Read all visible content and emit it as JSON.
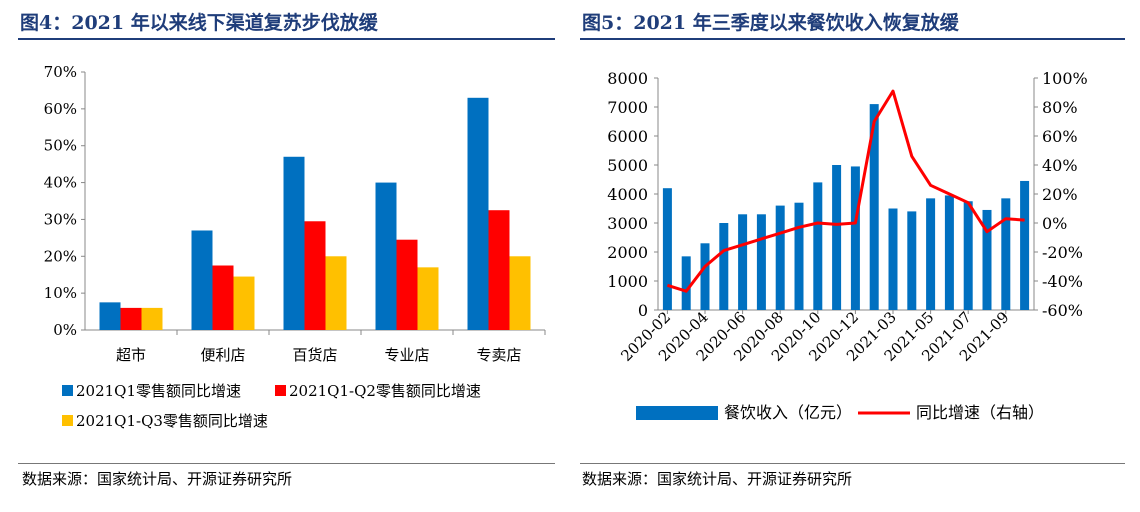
{
  "left": {
    "title": "图4：2021 年以来线下渠道复苏步伐放缓",
    "source": "数据来源：国家统计局、开源证券研究所",
    "chart_data": {
      "type": "bar",
      "categories": [
        "超市",
        "便利店",
        "百货店",
        "专业店",
        "专卖店"
      ],
      "series": [
        {
          "name": "2021Q1零售额同比增速",
          "color": "#0070c0",
          "values": [
            7.5,
            27,
            47,
            40,
            63
          ]
        },
        {
          "name": "2021Q1-Q2零售额同比增速",
          "color": "#ff0000",
          "values": [
            6,
            17.5,
            29.5,
            24.5,
            32.5
          ]
        },
        {
          "name": "2021Q1-Q3零售额同比增速",
          "color": "#ffc000",
          "values": [
            6,
            14.5,
            20,
            17,
            20
          ]
        }
      ],
      "ylim": [
        0,
        70
      ],
      "yticks": [
        "0%",
        "10%",
        "20%",
        "30%",
        "40%",
        "50%",
        "60%",
        "70%"
      ],
      "grid": false,
      "legend": "bottom"
    }
  },
  "right": {
    "title": "图5：2021 年三季度以来餐饮收入恢复放缓",
    "source": "数据来源：国家统计局、开源证券研究所",
    "chart_data": {
      "type": "bar+line",
      "x": [
        "2020-02",
        "2020-03",
        "2020-04",
        "2020-05",
        "2020-06",
        "2020-07",
        "2020-08",
        "2020-09",
        "2020-10",
        "2020-11",
        "2020-12",
        "2021-02",
        "2021-03",
        "2021-04",
        "2021-05",
        "2021-06",
        "2021-07",
        "2021-08",
        "2021-09",
        "2021-10"
      ],
      "xtick_labels": [
        "2020-02",
        "2020-04",
        "2020-06",
        "2020-08",
        "2020-10",
        "2020-12",
        "2021-03",
        "2021-05",
        "2021-07",
        "2021-09"
      ],
      "series": [
        {
          "name": "餐饮收入（亿元）",
          "type": "bar",
          "axis": "left",
          "color": "#0070c0",
          "values": [
            4200,
            1850,
            2300,
            3000,
            3300,
            3300,
            3600,
            3700,
            4400,
            5000,
            4950,
            7100,
            3500,
            3400,
            3850,
            3950,
            3750,
            3450,
            3850,
            4450
          ]
        },
        {
          "name": "同比增速（右轴）",
          "type": "line",
          "axis": "right",
          "color": "#ff0000",
          "values": [
            -43,
            -47,
            -30,
            -19,
            -15,
            -11,
            -7,
            -3,
            0,
            -1,
            0,
            70,
            91,
            46,
            26,
            20,
            14,
            -6,
            3,
            2
          ]
        }
      ],
      "ylim_left": [
        0,
        8000
      ],
      "yticks_left": [
        "0",
        "1000",
        "2000",
        "3000",
        "4000",
        "5000",
        "6000",
        "7000",
        "8000"
      ],
      "ylim_right": [
        -60,
        100
      ],
      "yticks_right": [
        "-60%",
        "-40%",
        "-20%",
        "0%",
        "20%",
        "40%",
        "60%",
        "80%",
        "100%"
      ],
      "grid": false,
      "legend": "bottom"
    }
  }
}
